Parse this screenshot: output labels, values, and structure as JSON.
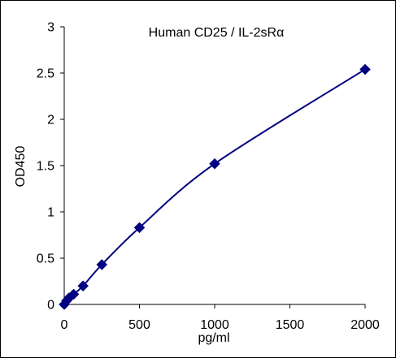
{
  "chart_data": {
    "type": "scatter",
    "title": "Human  CD25 / IL-2sRα",
    "xlabel": "pg/ml",
    "ylabel": "OD450",
    "xlim": [
      0,
      2000
    ],
    "ylim": [
      0,
      3
    ],
    "xticks": [
      0,
      500,
      1000,
      1500,
      2000
    ],
    "yticks": [
      0,
      0.5,
      1,
      1.5,
      2,
      2.5,
      3
    ],
    "xtick_labels": [
      "0",
      "500",
      "1000",
      "1500",
      "2000"
    ],
    "ytick_labels": [
      "0",
      "0.5",
      "1",
      "1.5",
      "2",
      "2.5",
      "3"
    ],
    "grid": false,
    "marker": "diamond",
    "fit_curve": true,
    "series": [
      {
        "x": [
          0,
          15.6,
          31.25,
          62.5,
          125,
          250,
          500,
          1000,
          2000
        ],
        "y": [
          0.0,
          0.04,
          0.07,
          0.11,
          0.2,
          0.43,
          0.83,
          1.52,
          2.54
        ]
      }
    ],
    "colors": {
      "series": "#000080",
      "axis": "#000000"
    }
  }
}
